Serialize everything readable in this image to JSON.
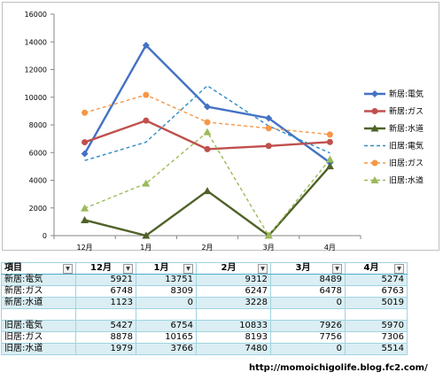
{
  "chart_data": {
    "type": "line",
    "categories": [
      "12月",
      "1月",
      "2月",
      "3月",
      "4月"
    ],
    "ylim": [
      0,
      16000
    ],
    "yticks": [
      0,
      2000,
      4000,
      6000,
      8000,
      10000,
      12000,
      14000,
      16000
    ],
    "grid": false,
    "legend_position": "right",
    "series": [
      {
        "name": "新居:電気",
        "values": [
          5921,
          13751,
          9312,
          8489,
          5274
        ],
        "color": "#4472c4",
        "style": "solid",
        "marker": "diamond"
      },
      {
        "name": "新居:ガス",
        "values": [
          6748,
          8309,
          6247,
          6478,
          6763
        ],
        "color": "#c0504d",
        "style": "solid",
        "marker": "circle"
      },
      {
        "name": "新居:水道",
        "values": [
          1123,
          0,
          3228,
          0,
          5019
        ],
        "color": "#4f6228",
        "style": "solid",
        "marker": "triangle"
      },
      {
        "name": "旧居:電気",
        "values": [
          5427,
          6754,
          10833,
          7926,
          5970
        ],
        "color": "#2e8bc6",
        "style": "dashed",
        "marker": "none"
      },
      {
        "name": "旧居:ガス",
        "values": [
          8878,
          10165,
          8193,
          7756,
          7306
        ],
        "color": "#f79646",
        "style": "dashed",
        "marker": "circle"
      },
      {
        "name": "旧居:水道",
        "values": [
          1979,
          3766,
          7480,
          0,
          5514
        ],
        "color": "#9bbb59",
        "style": "dashed",
        "marker": "triangle"
      }
    ]
  },
  "table": {
    "headers": [
      "項目",
      "12月",
      "1月",
      "2月",
      "3月",
      "4月"
    ],
    "rows": [
      {
        "label": "新居:電気",
        "values": [
          "5921",
          "13751",
          "9312",
          "8489",
          "5274"
        ]
      },
      {
        "label": "新居:ガス",
        "values": [
          "6748",
          "8309",
          "6247",
          "6478",
          "6763"
        ]
      },
      {
        "label": "新居:水道",
        "values": [
          "1123",
          "0",
          "3228",
          "0",
          "5019"
        ]
      },
      {
        "label": "",
        "values": [
          "",
          "",
          "",
          "",
          ""
        ]
      },
      {
        "label": "旧居:電気",
        "values": [
          "5427",
          "6754",
          "10833",
          "7926",
          "5970"
        ]
      },
      {
        "label": "旧居:ガス",
        "values": [
          "8878",
          "10165",
          "8193",
          "7756",
          "7306"
        ]
      },
      {
        "label": "旧居:水道",
        "values": [
          "1979",
          "3766",
          "7480",
          "0",
          "5514"
        ]
      }
    ],
    "dropdown_icon": "dropdown-arrow-icon"
  },
  "url_text": "http://momoichigolife.blog.fc2.com/"
}
